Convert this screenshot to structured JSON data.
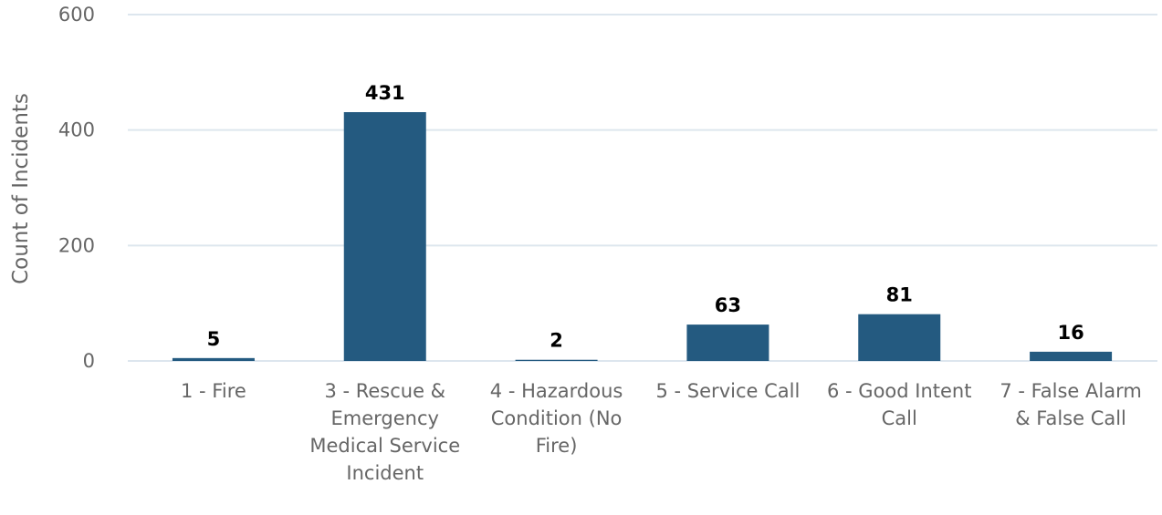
{
  "chart_data": {
    "type": "bar",
    "title": "",
    "xlabel": "",
    "ylabel": "Count of Incidents",
    "categories": [
      "1 - Fire",
      "3 - Rescue & Emergency Medical Service Incident",
      "4 - Hazardous Condition (No Fire)",
      "5 - Service Call",
      "6 - Good Intent Call",
      "7 - False Alarm & False Call"
    ],
    "values": [
      5,
      431,
      2,
      63,
      81,
      16
    ],
    "ylim": [
      0,
      600
    ],
    "yticks": [
      "0",
      "200",
      "400",
      "600"
    ],
    "grid": true,
    "legend": "none",
    "bar_color": "#245a80",
    "grid_color": "#dde6ee",
    "text_color": "#666666"
  }
}
